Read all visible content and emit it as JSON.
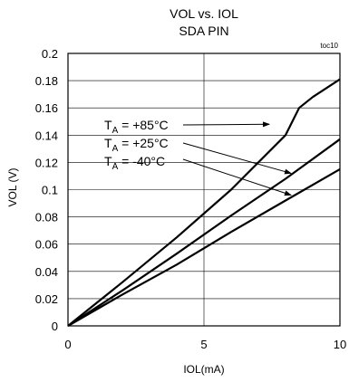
{
  "chart_data": {
    "type": "line",
    "title": "VOL vs. IOL",
    "subtitle": "SDA PIN",
    "figure_id": "toc10",
    "xlabel": "IOL(mA)",
    "ylabel": "VOL (V)",
    "xlim": [
      0,
      10
    ],
    "ylim": [
      0,
      0.2
    ],
    "xticks": [
      0,
      5,
      10
    ],
    "yticks": [
      0,
      0.02,
      0.04,
      0.06,
      0.08,
      0.1,
      0.12,
      0.14,
      0.16,
      0.18,
      0.2
    ],
    "grid": true,
    "series": [
      {
        "name": "TA = +85°C",
        "x": [
          0,
          2,
          4,
          6,
          8,
          8.5,
          9,
          10
        ],
        "y": [
          0,
          0.032,
          0.065,
          0.1,
          0.14,
          0.16,
          0.168,
          0.181
        ]
      },
      {
        "name": "TA = +25°C",
        "x": [
          0,
          2,
          4,
          6,
          8,
          10
        ],
        "y": [
          0,
          0.026,
          0.053,
          0.081,
          0.108,
          0.137
        ]
      },
      {
        "name": "TA = -40°C",
        "x": [
          0,
          2,
          4,
          6,
          8,
          10
        ],
        "y": [
          0,
          0.023,
          0.045,
          0.069,
          0.092,
          0.115
        ]
      }
    ],
    "annotations": [
      {
        "label": "TA = +85°C",
        "sub": "A",
        "text_pre": "T",
        "text_post": " = +85°C",
        "target_x": 7.4,
        "target_y": 0.148
      },
      {
        "label": "TA = +25°C",
        "sub": "A",
        "text_pre": "T",
        "text_post": " = +25°C",
        "target_x": 8.2,
        "target_y": 0.112
      },
      {
        "label": "TA = -40°C",
        "sub": "A",
        "text_pre": "T",
        "text_post": " = -40°C",
        "target_x": 8.2,
        "target_y": 0.096
      }
    ]
  }
}
